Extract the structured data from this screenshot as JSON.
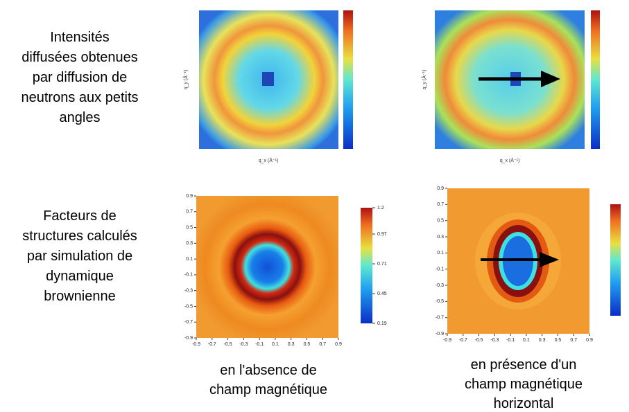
{
  "rows": [
    [
      "Intensités",
      "diffusées obtenues",
      "par diffusion de",
      "neutrons aux petits",
      "angles"
    ],
    [
      "Facteurs de",
      "structures calculés",
      "par simulation de",
      "dynamique",
      "brownienne"
    ]
  ],
  "saxs_axes": {
    "xlabel": "q_x (Å⁻¹)",
    "ylabel": "q_y (Å⁻¹)"
  },
  "sim_axes": {
    "lim": [
      -0.9,
      0.9
    ],
    "ticks": [
      -0.9,
      -0.7,
      -0.5,
      -0.3,
      -0.1,
      0.1,
      0.3,
      0.5,
      0.7,
      0.9
    ],
    "colorbar": {
      "lim": [
        0.19,
        1.2
      ],
      "ticks": [
        0.19,
        0.45,
        0.71,
        0.97,
        1.2
      ]
    }
  },
  "captions": [
    [
      "en l'absence de",
      "champ magnétique"
    ],
    [
      "en présence d'un",
      "champ magnétique",
      "horizontal"
    ]
  ]
}
